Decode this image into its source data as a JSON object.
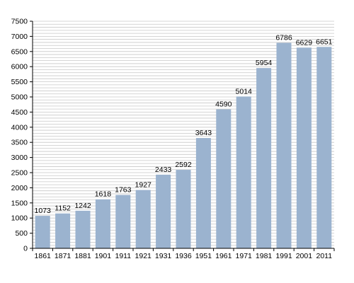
{
  "chart_data": {
    "type": "bar",
    "categories": [
      "1861",
      "1871",
      "1881",
      "1901",
      "1911",
      "1921",
      "1931",
      "1936",
      "1951",
      "1961",
      "1971",
      "1981",
      "1991",
      "2001",
      "2011"
    ],
    "values": [
      1073,
      1152,
      1242,
      1618,
      1763,
      1927,
      2433,
      2592,
      3643,
      4590,
      5014,
      5954,
      6786,
      6629,
      6651
    ],
    "data_labels": [
      "1073",
      "1152",
      "1242",
      "1618",
      "1763",
      "1927",
      "2433",
      "2592",
      "3643",
      "4590",
      "5014",
      "5954",
      "6786",
      "6629",
      "6651"
    ],
    "y_ticks": [
      "0",
      "500",
      "1000",
      "1500",
      "2000",
      "2500",
      "3000",
      "3500",
      "4000",
      "4500",
      "5000",
      "5500",
      "6000",
      "6500",
      "7000",
      "7500"
    ],
    "ylim": [
      0,
      7500
    ],
    "minor_grid_step": 100,
    "grid": true,
    "title": "",
    "xlabel": "",
    "ylabel": "",
    "bar_color": "#9bb3cf",
    "grid_color": "#c8c8c8"
  }
}
